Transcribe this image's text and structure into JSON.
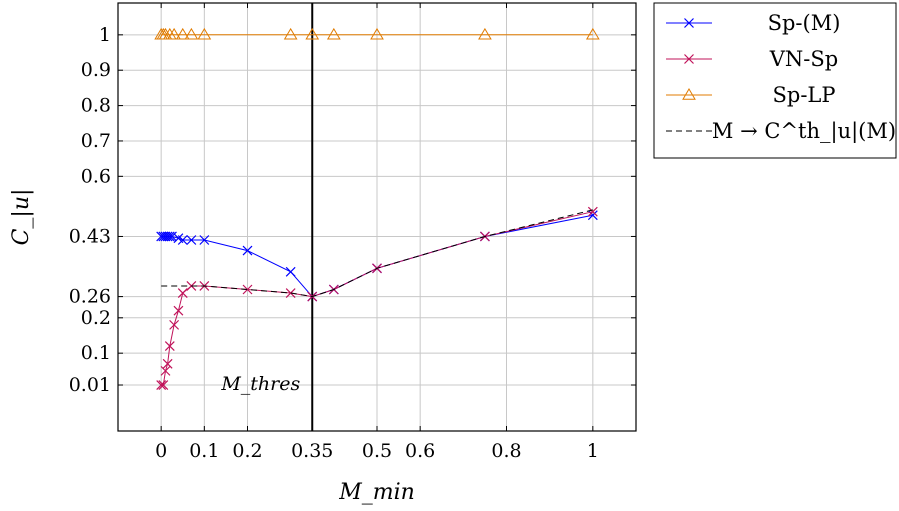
{
  "chart_data": {
    "type": "line",
    "xlabel": "M_min",
    "ylabel": "C_|u|",
    "x_ticks": [
      0,
      0.1,
      0.2,
      0.35,
      0.5,
      0.6,
      0.8,
      1
    ],
    "x_tick_labels": [
      "0",
      "0.1",
      "0.2",
      "0.35",
      "0.5",
      "0.6",
      "0.8",
      "1"
    ],
    "y_ticks": [
      0.01,
      0.1,
      0.2,
      0.26,
      0.43,
      0.6,
      0.7,
      0.8,
      0.9,
      1
    ],
    "y_tick_labels": [
      "0.01",
      "0.1",
      "0.2",
      "0.26",
      "0.43",
      "0.6",
      "0.7",
      "0.8",
      "0.9",
      "1"
    ],
    "xlim": [
      -0.1,
      1.1
    ],
    "ylim": [
      -0.12,
      1.09
    ],
    "grid": true,
    "legend_position": "outside-top-right",
    "threshold": {
      "x": 0.35,
      "label": "M_thres"
    },
    "series": [
      {
        "name": "Sp-(M)",
        "color": "#0000ff",
        "marker": "x",
        "x": [
          0,
          0.005,
          0.01,
          0.015,
          0.02,
          0.025,
          0.04,
          0.05,
          0.07,
          0.1,
          0.2,
          0.3,
          0.35,
          0.4,
          0.5,
          0.75,
          1
        ],
        "y": [
          0.43,
          0.43,
          0.43,
          0.43,
          0.43,
          0.43,
          0.425,
          0.42,
          0.42,
          0.42,
          0.39,
          0.33,
          0.26,
          0.28,
          0.34,
          0.43,
          0.49
        ]
      },
      {
        "name": "VN-Sp",
        "color": "#c0135a",
        "marker": "x",
        "x": [
          0,
          0.005,
          0.01,
          0.015,
          0.02,
          0.03,
          0.04,
          0.05,
          0.07,
          0.1,
          0.2,
          0.3,
          0.35,
          0.4,
          0.5,
          0.75,
          1
        ],
        "y": [
          0.01,
          0.01,
          0.05,
          0.07,
          0.12,
          0.18,
          0.22,
          0.27,
          0.29,
          0.29,
          0.28,
          0.27,
          0.26,
          0.28,
          0.34,
          0.43,
          0.5
        ]
      },
      {
        "name": "Sp-LP",
        "color": "#e07b00",
        "marker": "triangle",
        "x": [
          0,
          0.005,
          0.01,
          0.02,
          0.03,
          0.05,
          0.07,
          0.1,
          0.3,
          0.35,
          0.4,
          0.5,
          0.75,
          1
        ],
        "y": [
          1,
          1,
          1,
          1,
          1,
          1,
          1,
          1,
          1,
          1,
          1,
          1,
          1,
          1
        ]
      },
      {
        "name": "M → C^th_|u|(M)",
        "color": "#000000",
        "marker": "none",
        "dashed": true,
        "x": [
          0,
          0.05,
          0.07,
          0.1,
          0.2,
          0.3,
          0.35,
          0.4,
          0.5,
          0.75,
          1
        ],
        "y": [
          0.29,
          0.29,
          0.29,
          0.29,
          0.28,
          0.27,
          0.26,
          0.28,
          0.34,
          0.43,
          0.505
        ]
      }
    ]
  }
}
